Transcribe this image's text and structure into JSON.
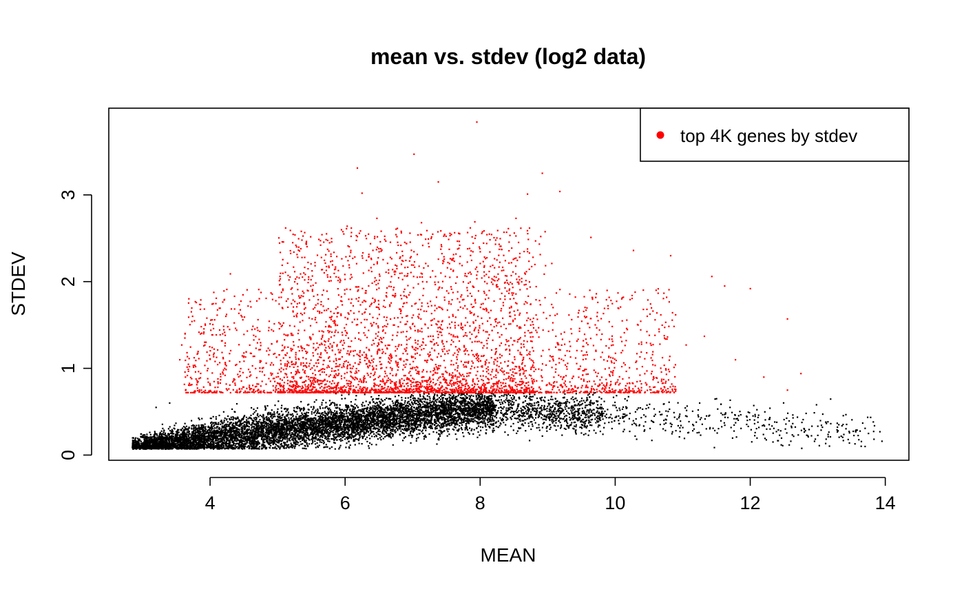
{
  "chart_data": {
    "type": "scatter",
    "title": "mean vs. stdev (log2 data)",
    "xlabel": "MEAN",
    "ylabel": "STDEV",
    "xlim": [
      2.5,
      14.35
    ],
    "ylim": [
      -0.06,
      4.0
    ],
    "x_ticks": [
      4,
      6,
      8,
      10,
      12,
      14
    ],
    "y_ticks": [
      0,
      1,
      2,
      3
    ],
    "grid": false,
    "legend": {
      "position": "top-right",
      "entries": [
        {
          "label": "top 4K genes by stdev",
          "color": "#ff0000"
        }
      ]
    },
    "series": [
      {
        "name": "top 4K genes by stdev",
        "color": "#ff0000",
        "points": [
          [
            7.95,
            3.84
          ],
          [
            7.02,
            3.47
          ],
          [
            6.18,
            3.31
          ],
          [
            7.38,
            3.15
          ],
          [
            8.92,
            3.25
          ],
          [
            6.25,
            3.02
          ],
          [
            8.7,
            3.01
          ],
          [
            9.18,
            3.04
          ],
          [
            7.92,
            2.69
          ],
          [
            6.47,
            2.73
          ],
          [
            6.03,
            2.64
          ],
          [
            7.13,
            2.68
          ],
          [
            8.53,
            2.73
          ],
          [
            8.39,
            2.57
          ],
          [
            6.83,
            2.58
          ],
          [
            5.98,
            2.55
          ],
          [
            5.27,
            2.42
          ],
          [
            6.52,
            2.46
          ],
          [
            8.82,
            2.47
          ],
          [
            9.64,
            2.51
          ],
          [
            10.27,
            2.36
          ],
          [
            10.82,
            2.3
          ],
          [
            9.06,
            2.21
          ],
          [
            7.58,
            2.25
          ],
          [
            4.3,
            2.09
          ],
          [
            5.4,
            2.02
          ],
          [
            6.35,
            2.13
          ],
          [
            7.55,
            2.05
          ],
          [
            8.0,
            2.21
          ],
          [
            9.72,
            1.86
          ],
          [
            10.04,
            1.87
          ],
          [
            11.43,
            2.06
          ],
          [
            12.0,
            1.92
          ],
          [
            11.62,
            1.95
          ],
          [
            10.76,
            1.82
          ],
          [
            12.55,
            1.57
          ],
          [
            4.03,
            1.56
          ],
          [
            4.46,
            1.61
          ],
          [
            4.72,
            1.91
          ],
          [
            3.58,
            1.27
          ],
          [
            3.55,
            1.1
          ],
          [
            11.05,
            1.27
          ],
          [
            11.32,
            1.37
          ],
          [
            11.78,
            1.1
          ],
          [
            12.2,
            0.9
          ],
          [
            12.55,
            0.75
          ],
          [
            12.75,
            0.94
          ],
          [
            10.75,
            0.85
          ]
        ]
      },
      {
        "name": "",
        "color": "#000000",
        "points": [
          [
            12.18,
            0.34
          ],
          [
            12.45,
            0.28
          ],
          [
            12.6,
            0.16
          ],
          [
            12.8,
            0.3
          ],
          [
            12.98,
            0.58
          ],
          [
            13.12,
            0.38
          ],
          [
            13.3,
            0.28
          ],
          [
            13.45,
            0.18
          ],
          [
            13.55,
            0.13
          ],
          [
            13.7,
            0.1
          ],
          [
            13.75,
            0.25
          ],
          [
            13.92,
            0.27
          ],
          [
            13.95,
            0.16
          ],
          [
            11.95,
            0.44
          ],
          [
            11.7,
            0.55
          ],
          [
            11.5,
            0.65
          ],
          [
            11.25,
            0.6
          ],
          [
            10.95,
            0.45
          ],
          [
            2.87,
            0.1
          ],
          [
            2.95,
            0.11
          ],
          [
            3.4,
            0.6
          ],
          [
            3.2,
            0.55
          ]
        ]
      }
    ]
  }
}
